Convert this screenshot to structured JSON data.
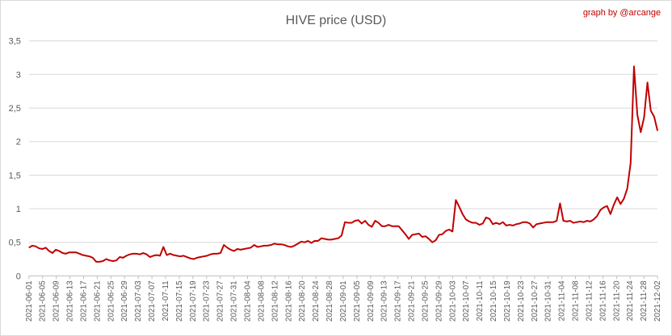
{
  "chart_data": {
    "type": "line",
    "title": "HIVE price (USD)",
    "credit": "graph by @arcange",
    "xlabel": "",
    "ylabel": "",
    "ylim": [
      0,
      3.5
    ],
    "yticks": [
      "0",
      "0,5",
      "1",
      "1,5",
      "2",
      "2,5",
      "3",
      "3,5"
    ],
    "grid": true,
    "legend": "none",
    "start_date": "2021-06-01",
    "end_date": "2021-12-02",
    "xtick_labels": [
      "2021-06-01",
      "2021-06-05",
      "2021-06-09",
      "2021-06-13",
      "2021-06-17",
      "2021-06-21",
      "2021-06-25",
      "2021-06-29",
      "2021-07-03",
      "2021-07-07",
      "2021-07-11",
      "2021-07-15",
      "2021-07-19",
      "2021-07-23",
      "2021-07-27",
      "2021-07-31",
      "2021-08-04",
      "2021-08-08",
      "2021-08-12",
      "2021-08-16",
      "2021-08-20",
      "2021-08-24",
      "2021-08-28",
      "2021-09-01",
      "2021-09-05",
      "2021-09-09",
      "2021-09-13",
      "2021-09-17",
      "2021-09-21",
      "2021-09-25",
      "2021-09-29",
      "2021-10-03",
      "2021-10-07",
      "2021-10-11",
      "2021-10-15",
      "2021-10-19",
      "2021-10-23",
      "2021-10-27",
      "2021-10-31",
      "2021-11-04",
      "2021-11-08",
      "2021-11-12",
      "2021-11-16",
      "2021-11-20",
      "2021-11-24",
      "2021-11-28",
      "2021-12-02"
    ],
    "series": [
      {
        "color": "#c00000",
        "values": [
          0.42,
          0.45,
          0.44,
          0.41,
          0.4,
          0.42,
          0.37,
          0.34,
          0.39,
          0.37,
          0.34,
          0.33,
          0.35,
          0.35,
          0.35,
          0.33,
          0.31,
          0.3,
          0.29,
          0.27,
          0.21,
          0.21,
          0.22,
          0.25,
          0.23,
          0.22,
          0.23,
          0.28,
          0.27,
          0.3,
          0.32,
          0.33,
          0.33,
          0.32,
          0.34,
          0.32,
          0.28,
          0.3,
          0.31,
          0.3,
          0.43,
          0.31,
          0.33,
          0.31,
          0.3,
          0.29,
          0.3,
          0.28,
          0.26,
          0.25,
          0.27,
          0.28,
          0.29,
          0.3,
          0.32,
          0.33,
          0.33,
          0.34,
          0.46,
          0.42,
          0.39,
          0.37,
          0.4,
          0.39,
          0.4,
          0.41,
          0.42,
          0.46,
          0.43,
          0.44,
          0.45,
          0.45,
          0.46,
          0.48,
          0.47,
          0.47,
          0.46,
          0.44,
          0.43,
          0.45,
          0.48,
          0.51,
          0.5,
          0.52,
          0.49,
          0.52,
          0.52,
          0.56,
          0.55,
          0.54,
          0.54,
          0.55,
          0.56,
          0.6,
          0.8,
          0.79,
          0.79,
          0.82,
          0.83,
          0.78,
          0.82,
          0.76,
          0.73,
          0.82,
          0.79,
          0.74,
          0.74,
          0.76,
          0.74,
          0.74,
          0.74,
          0.68,
          0.62,
          0.55,
          0.61,
          0.62,
          0.63,
          0.58,
          0.59,
          0.55,
          0.5,
          0.53,
          0.61,
          0.62,
          0.67,
          0.69,
          0.66,
          1.13,
          1.03,
          0.92,
          0.84,
          0.81,
          0.79,
          0.79,
          0.76,
          0.78,
          0.87,
          0.85,
          0.77,
          0.79,
          0.77,
          0.8,
          0.75,
          0.76,
          0.75,
          0.77,
          0.78,
          0.8,
          0.8,
          0.78,
          0.72,
          0.77,
          0.78,
          0.79,
          0.8,
          0.8,
          0.8,
          0.82,
          1.08,
          0.82,
          0.81,
          0.82,
          0.79,
          0.8,
          0.81,
          0.8,
          0.82,
          0.81,
          0.84,
          0.89,
          0.98,
          1.02,
          1.04,
          0.92,
          1.06,
          1.17,
          1.07,
          1.15,
          1.3,
          1.68,
          3.12,
          2.4,
          2.14,
          2.36,
          2.88,
          2.46,
          2.37,
          2.16
        ]
      }
    ]
  }
}
